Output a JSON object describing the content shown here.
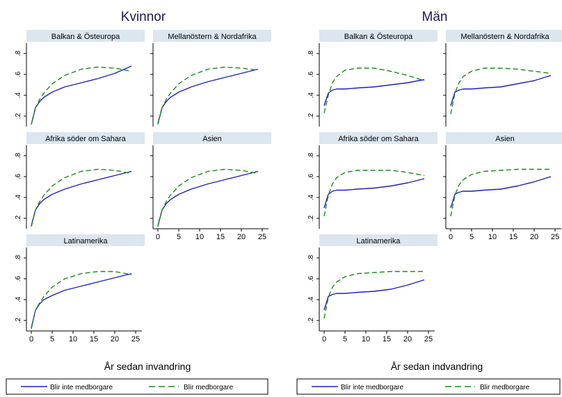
{
  "figure": {
    "left_title": "Kvinnor",
    "right_title": "Män",
    "left_xlabel": "År sedan invandring",
    "right_xlabel": "År sedan indvandring",
    "legend": [
      "Blir inte medborgare",
      "Blir medborgare"
    ],
    "x_ticks": [
      "0",
      "5",
      "10",
      "15",
      "20",
      "25"
    ],
    "y_ticks": [
      ".2",
      ".4",
      ".6",
      ".8"
    ]
  },
  "colors": {
    "series_not": "#1f1fbf",
    "series_yes": "#1a8a1a",
    "panel_header": "#dbe6ef",
    "axis": "#000000"
  },
  "chart_data": [
    {
      "type": "line",
      "group": "Kvinnor",
      "title": "Balkan & Östeuropa",
      "xlim": [
        0,
        25
      ],
      "ylim": [
        0.1,
        0.9
      ],
      "series": [
        {
          "name": "Blir inte medborgare",
          "x": [
            0,
            1,
            2,
            3,
            5,
            8,
            12,
            16,
            20,
            24
          ],
          "y": [
            0.12,
            0.28,
            0.34,
            0.38,
            0.43,
            0.48,
            0.52,
            0.56,
            0.61,
            0.68
          ]
        },
        {
          "name": "Blir medborgare",
          "x": [
            0,
            1,
            2,
            3,
            5,
            8,
            12,
            16,
            20,
            24
          ],
          "y": [
            0.12,
            0.28,
            0.36,
            0.42,
            0.51,
            0.59,
            0.65,
            0.67,
            0.66,
            0.63
          ]
        }
      ]
    },
    {
      "type": "line",
      "group": "Kvinnor",
      "title": "Mellanöstern & Nordafrika",
      "xlim": [
        0,
        25
      ],
      "ylim": [
        0.1,
        0.9
      ],
      "series": [
        {
          "name": "Blir inte medborgare",
          "x": [
            0,
            1,
            2,
            3,
            5,
            8,
            12,
            16,
            20,
            24
          ],
          "y": [
            0.13,
            0.28,
            0.34,
            0.38,
            0.43,
            0.48,
            0.53,
            0.57,
            0.61,
            0.65
          ]
        },
        {
          "name": "Blir medborgare",
          "x": [
            0,
            1,
            2,
            3,
            5,
            8,
            12,
            16,
            20,
            24
          ],
          "y": [
            0.12,
            0.28,
            0.36,
            0.42,
            0.51,
            0.59,
            0.65,
            0.67,
            0.66,
            0.64
          ]
        }
      ]
    },
    {
      "type": "line",
      "group": "Kvinnor",
      "title": "Afrika söder om Sahara",
      "xlim": [
        0,
        25
      ],
      "ylim": [
        0.1,
        0.9
      ],
      "series": [
        {
          "name": "Blir inte medborgare",
          "x": [
            0,
            1,
            2,
            3,
            5,
            8,
            12,
            16,
            20,
            24
          ],
          "y": [
            0.13,
            0.28,
            0.34,
            0.38,
            0.43,
            0.48,
            0.53,
            0.57,
            0.61,
            0.65
          ]
        },
        {
          "name": "Blir medborgare",
          "x": [
            0,
            1,
            2,
            3,
            5,
            8,
            12,
            16,
            20,
            24
          ],
          "y": [
            0.12,
            0.28,
            0.36,
            0.42,
            0.51,
            0.59,
            0.65,
            0.67,
            0.66,
            0.63
          ]
        }
      ]
    },
    {
      "type": "line",
      "group": "Kvinnor",
      "title": "Asien",
      "xlim": [
        0,
        25
      ],
      "ylim": [
        0.1,
        0.9
      ],
      "series": [
        {
          "name": "Blir inte medborgare",
          "x": [
            0,
            1,
            2,
            3,
            5,
            8,
            12,
            16,
            20,
            24
          ],
          "y": [
            0.13,
            0.28,
            0.34,
            0.38,
            0.43,
            0.48,
            0.53,
            0.57,
            0.61,
            0.65
          ]
        },
        {
          "name": "Blir medborgare",
          "x": [
            0,
            1,
            2,
            3,
            5,
            8,
            12,
            16,
            20,
            24
          ],
          "y": [
            0.12,
            0.28,
            0.36,
            0.42,
            0.51,
            0.59,
            0.65,
            0.67,
            0.66,
            0.63
          ]
        }
      ]
    },
    {
      "type": "line",
      "group": "Kvinnor",
      "title": "Latinamerika",
      "xlim": [
        0,
        25
      ],
      "ylim": [
        0.1,
        0.9
      ],
      "series": [
        {
          "name": "Blir inte medborgare",
          "x": [
            0,
            1,
            2,
            3,
            5,
            8,
            12,
            16,
            20,
            24
          ],
          "y": [
            0.13,
            0.3,
            0.36,
            0.4,
            0.44,
            0.49,
            0.53,
            0.57,
            0.61,
            0.65
          ]
        },
        {
          "name": "Blir medborgare",
          "x": [
            0,
            1,
            2,
            3,
            5,
            8,
            12,
            16,
            20,
            24
          ],
          "y": [
            0.12,
            0.3,
            0.37,
            0.43,
            0.52,
            0.6,
            0.65,
            0.67,
            0.67,
            0.64
          ]
        }
      ]
    },
    {
      "type": "line",
      "group": "Män",
      "title": "Balkan & Östeuropa",
      "xlim": [
        0,
        25
      ],
      "ylim": [
        0.1,
        0.9
      ],
      "series": [
        {
          "name": "Blir inte medborgare",
          "x": [
            0,
            1,
            2,
            3,
            5,
            8,
            12,
            16,
            20,
            24
          ],
          "y": [
            0.3,
            0.42,
            0.45,
            0.46,
            0.46,
            0.47,
            0.48,
            0.5,
            0.52,
            0.55
          ]
        },
        {
          "name": "Blir medborgare",
          "x": [
            0,
            1,
            2,
            3,
            5,
            8,
            12,
            16,
            20,
            24
          ],
          "y": [
            0.23,
            0.4,
            0.52,
            0.58,
            0.64,
            0.66,
            0.66,
            0.63,
            0.59,
            0.54
          ]
        }
      ]
    },
    {
      "type": "line",
      "group": "Män",
      "title": "Mellanöstern & Nordafrika",
      "xlim": [
        0,
        25
      ],
      "ylim": [
        0.1,
        0.9
      ],
      "series": [
        {
          "name": "Blir inte medborgare",
          "x": [
            0,
            1,
            2,
            3,
            5,
            8,
            12,
            16,
            20,
            24
          ],
          "y": [
            0.3,
            0.43,
            0.45,
            0.46,
            0.46,
            0.47,
            0.48,
            0.51,
            0.54,
            0.59
          ]
        },
        {
          "name": "Blir medborgare",
          "x": [
            0,
            1,
            2,
            3,
            5,
            8,
            12,
            16,
            20,
            24
          ],
          "y": [
            0.22,
            0.42,
            0.52,
            0.58,
            0.63,
            0.66,
            0.66,
            0.65,
            0.63,
            0.61
          ]
        }
      ]
    },
    {
      "type": "line",
      "group": "Män",
      "title": "Afrika söder om Sahara",
      "xlim": [
        0,
        25
      ],
      "ylim": [
        0.1,
        0.9
      ],
      "series": [
        {
          "name": "Blir inte medborgare",
          "x": [
            0,
            1,
            2,
            3,
            5,
            8,
            12,
            16,
            20,
            24
          ],
          "y": [
            0.3,
            0.43,
            0.46,
            0.47,
            0.47,
            0.48,
            0.49,
            0.51,
            0.54,
            0.58
          ]
        },
        {
          "name": "Blir medborgare",
          "x": [
            0,
            1,
            2,
            3,
            5,
            8,
            12,
            16,
            20,
            24
          ],
          "y": [
            0.22,
            0.42,
            0.53,
            0.59,
            0.64,
            0.66,
            0.66,
            0.66,
            0.64,
            0.61
          ]
        }
      ]
    },
    {
      "type": "line",
      "group": "Män",
      "title": "Asien",
      "xlim": [
        0,
        25
      ],
      "ylim": [
        0.1,
        0.9
      ],
      "series": [
        {
          "name": "Blir inte medborgare",
          "x": [
            0,
            1,
            2,
            3,
            5,
            8,
            12,
            16,
            20,
            24
          ],
          "y": [
            0.3,
            0.43,
            0.45,
            0.46,
            0.46,
            0.47,
            0.48,
            0.51,
            0.55,
            0.6
          ]
        },
        {
          "name": "Blir medborgare",
          "x": [
            0,
            1,
            2,
            3,
            5,
            8,
            12,
            16,
            20,
            24
          ],
          "y": [
            0.22,
            0.42,
            0.52,
            0.57,
            0.62,
            0.65,
            0.66,
            0.67,
            0.67,
            0.67
          ]
        }
      ]
    },
    {
      "type": "line",
      "group": "Män",
      "title": "Latinamerika",
      "xlim": [
        0,
        25
      ],
      "ylim": [
        0.1,
        0.9
      ],
      "series": [
        {
          "name": "Blir inte medborgare",
          "x": [
            0,
            1,
            2,
            3,
            5,
            8,
            12,
            16,
            20,
            24
          ],
          "y": [
            0.3,
            0.43,
            0.45,
            0.46,
            0.46,
            0.47,
            0.48,
            0.5,
            0.54,
            0.59
          ]
        },
        {
          "name": "Blir medborgare",
          "x": [
            0,
            1,
            2,
            3,
            5,
            8,
            12,
            16,
            20,
            24
          ],
          "y": [
            0.22,
            0.42,
            0.52,
            0.57,
            0.62,
            0.65,
            0.66,
            0.67,
            0.67,
            0.67
          ]
        }
      ]
    }
  ]
}
